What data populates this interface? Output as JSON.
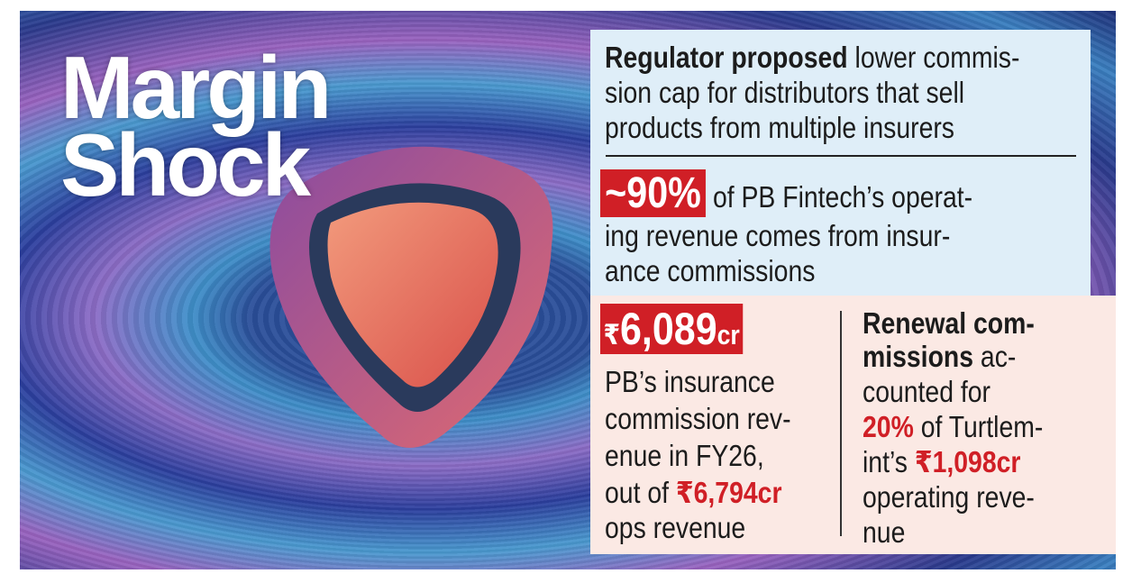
{
  "title": {
    "line1": "Margin",
    "line2": "Shock"
  },
  "fact1": {
    "bold": "Regulator proposed",
    "lines": [
      " lower commis-",
      "sion cap for distributors that sell",
      "products from multiple insurers"
    ]
  },
  "fact2": {
    "highlight": "~90%",
    "lines": [
      " of PB Fintech’s operat-",
      "ing revenue comes from insur-",
      "ance commissions"
    ]
  },
  "fact3": {
    "currency": "₹",
    "amount": "6,089",
    "unit": "cr",
    "lines": [
      "PB’s insurance",
      "commission rev-",
      "enue in FY26,",
      "out of "
    ],
    "ops_total": "₹6,794cr",
    "tail": "ops revenue"
  },
  "fact4": {
    "bold_lines": [
      "Renewal com-",
      "missions"
    ],
    "lines": [
      " ac-",
      "counted for"
    ],
    "share": "20%",
    "after_share": " of Turtlem-",
    "pre_amount": "int’s ",
    "amount": "₹1,098cr",
    "tail_lines": [
      "operating reve-",
      "nue"
    ]
  }
}
